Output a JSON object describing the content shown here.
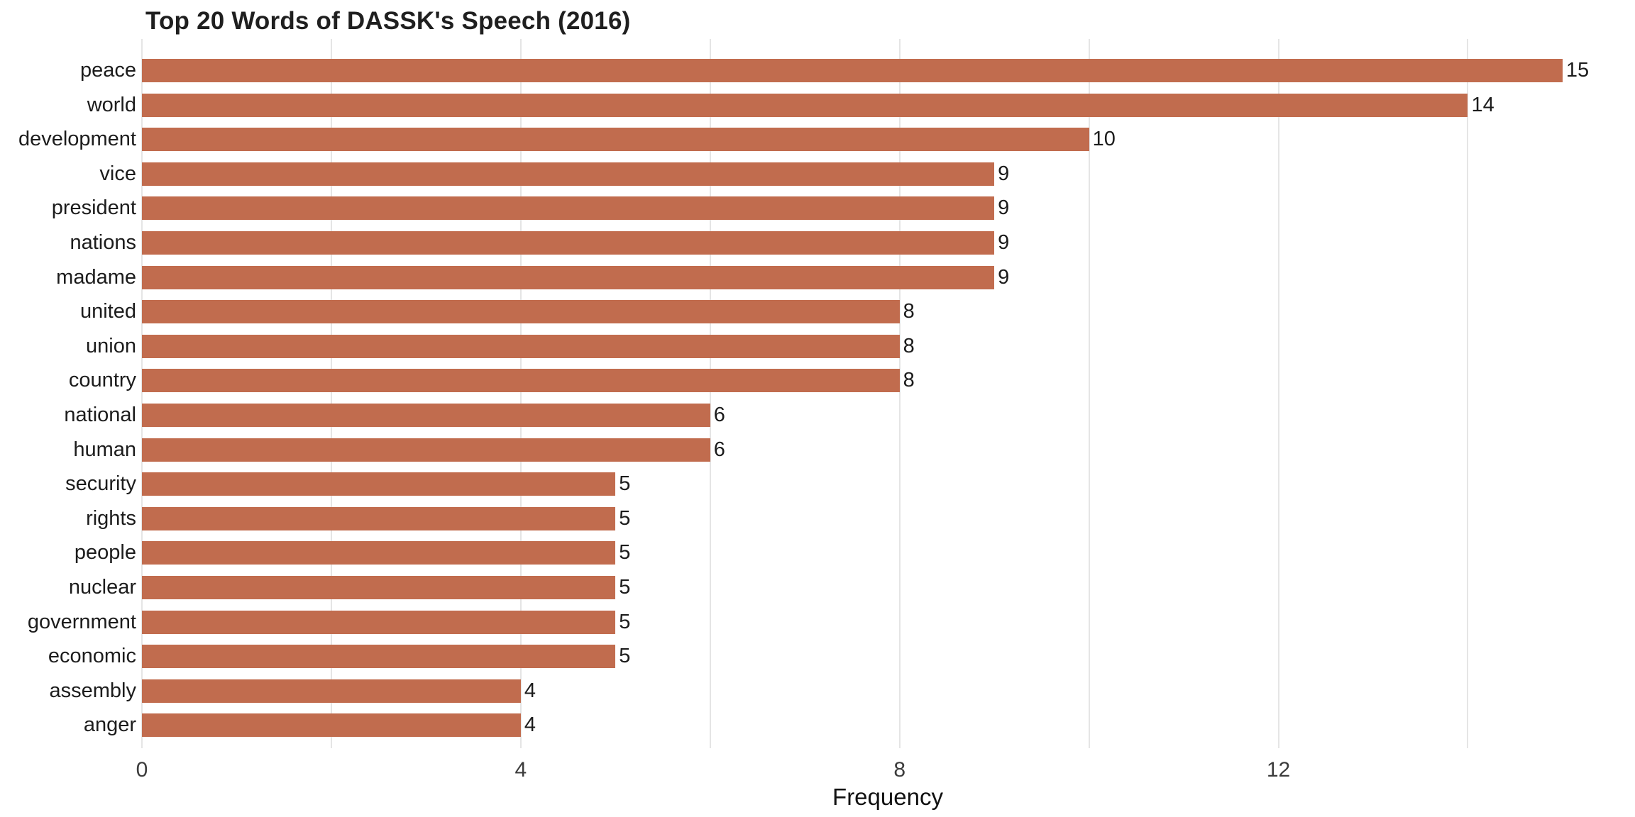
{
  "title": "Top 20 Words of DASSK's Speech (2016)",
  "chart_data": {
    "type": "bar",
    "orientation": "horizontal",
    "title": "Top 20 Words of DASSK's Speech (2016)",
    "categories": [
      "peace",
      "world",
      "development",
      "vice",
      "president",
      "nations",
      "madame",
      "united",
      "union",
      "country",
      "national",
      "human",
      "security",
      "rights",
      "people",
      "nuclear",
      "government",
      "economic",
      "assembly",
      "anger"
    ],
    "values": [
      15,
      14,
      10,
      9,
      9,
      9,
      9,
      8,
      8,
      8,
      6,
      6,
      5,
      5,
      5,
      5,
      5,
      5,
      4,
      4
    ],
    "value_labels_shown": true,
    "xlabel": "Frequency",
    "ylabel": "",
    "x_tick_labels": [
      0,
      4,
      8,
      12
    ],
    "gridline_positions": [
      0,
      2,
      4,
      6,
      8,
      10,
      12,
      14
    ],
    "xlim": [
      0,
      15.75
    ],
    "grid": "vertical",
    "legend": "none",
    "colors": {
      "bar": "#c16c4e",
      "gridline": "#e5e5e5",
      "axis_text": "#3c3c3c",
      "label_text": "#1c1c1c",
      "title_text": "#1f1f1f",
      "background": "#ffffff"
    }
  }
}
